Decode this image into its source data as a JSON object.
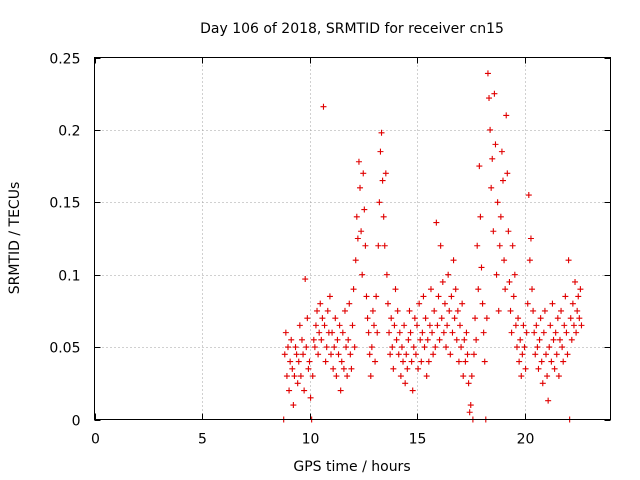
{
  "chart_data": {
    "type": "scatter",
    "title": "Day 106 of 2018, SRMTID for receiver cn15",
    "xlabel": "GPS time / hours",
    "ylabel": "SRMTID / TECUs",
    "xlim": [
      0,
      24
    ],
    "ylim": [
      0,
      0.25
    ],
    "xticks": [
      0,
      5,
      10,
      15,
      20
    ],
    "xtick_labels": [
      "0",
      "5",
      "10",
      "15",
      "20"
    ],
    "yticks": [
      0,
      0.05,
      0.1,
      0.15,
      0.2,
      0.25
    ],
    "ytick_labels": [
      "0",
      "0.05",
      "0.1",
      "0.15",
      "0.2",
      "0.25"
    ],
    "grid": true,
    "marker": "+",
    "color": "#e00000",
    "series": [
      {
        "name": "SRMTID",
        "points": [
          [
            8.8,
            0.0
          ],
          [
            8.85,
            0.045
          ],
          [
            8.9,
            0.06
          ],
          [
            8.95,
            0.03
          ],
          [
            9.0,
            0.05
          ],
          [
            9.05,
            0.02
          ],
          [
            9.1,
            0.04
          ],
          [
            9.15,
            0.055
          ],
          [
            9.2,
            0.035
          ],
          [
            9.25,
            0.01
          ],
          [
            9.3,
            0.03
          ],
          [
            9.35,
            0.05
          ],
          [
            9.4,
            0.045
          ],
          [
            9.45,
            0.025
          ],
          [
            9.5,
            0.04
          ],
          [
            9.55,
            0.065
          ],
          [
            9.6,
            0.03
          ],
          [
            9.65,
            0.055
          ],
          [
            9.7,
            0.045
          ],
          [
            9.75,
            0.02
          ],
          [
            9.8,
            0.097
          ],
          [
            9.85,
            0.05
          ],
          [
            9.9,
            0.07
          ],
          [
            9.95,
            0.035
          ],
          [
            10.0,
            0.04
          ],
          [
            10.05,
            0.015
          ],
          [
            10.1,
            0.0
          ],
          [
            10.15,
            0.03
          ],
          [
            10.2,
            0.055
          ],
          [
            10.25,
            0.05
          ],
          [
            10.3,
            0.065
          ],
          [
            10.35,
            0.075
          ],
          [
            10.4,
            0.045
          ],
          [
            10.45,
            0.06
          ],
          [
            10.5,
            0.08
          ],
          [
            10.55,
            0.055
          ],
          [
            10.6,
            0.07
          ],
          [
            10.65,
            0.216
          ],
          [
            10.7,
            0.065
          ],
          [
            10.75,
            0.04
          ],
          [
            10.8,
            0.05
          ],
          [
            10.85,
            0.075
          ],
          [
            10.9,
            0.06
          ],
          [
            10.95,
            0.085
          ],
          [
            11.0,
            0.045
          ],
          [
            11.05,
            0.06
          ],
          [
            11.1,
            0.035
          ],
          [
            11.15,
            0.05
          ],
          [
            11.2,
            0.07
          ],
          [
            11.25,
            0.03
          ],
          [
            11.3,
            0.055
          ],
          [
            11.35,
            0.045
          ],
          [
            11.4,
            0.065
          ],
          [
            11.45,
            0.02
          ],
          [
            11.5,
            0.04
          ],
          [
            11.55,
            0.06
          ],
          [
            11.6,
            0.035
          ],
          [
            11.65,
            0.075
          ],
          [
            11.7,
            0.05
          ],
          [
            11.75,
            0.03
          ],
          [
            11.8,
            0.055
          ],
          [
            11.85,
            0.08
          ],
          [
            11.9,
            0.045
          ],
          [
            11.95,
            0.035
          ],
          [
            12.0,
            0.065
          ],
          [
            12.05,
            0.09
          ],
          [
            12.1,
            0.05
          ],
          [
            12.15,
            0.11
          ],
          [
            12.2,
            0.14
          ],
          [
            12.25,
            0.125
          ],
          [
            12.3,
            0.178
          ],
          [
            12.35,
            0.16
          ],
          [
            12.4,
            0.13
          ],
          [
            12.45,
            0.1
          ],
          [
            12.5,
            0.17
          ],
          [
            12.55,
            0.145
          ],
          [
            12.6,
            0.12
          ],
          [
            12.65,
            0.085
          ],
          [
            12.7,
            0.07
          ],
          [
            12.75,
            0.06
          ],
          [
            12.8,
            0.045
          ],
          [
            12.85,
            0.03
          ],
          [
            12.9,
            0.05
          ],
          [
            12.95,
            0.075
          ],
          [
            13.0,
            0.065
          ],
          [
            13.05,
            0.04
          ],
          [
            13.1,
            0.085
          ],
          [
            13.15,
            0.06
          ],
          [
            13.2,
            0.12
          ],
          [
            13.25,
            0.15
          ],
          [
            13.3,
            0.185
          ],
          [
            13.35,
            0.198
          ],
          [
            13.4,
            0.165
          ],
          [
            13.45,
            0.14
          ],
          [
            13.5,
            0.12
          ],
          [
            13.55,
            0.17
          ],
          [
            13.6,
            0.1
          ],
          [
            13.65,
            0.08
          ],
          [
            13.7,
            0.06
          ],
          [
            13.75,
            0.045
          ],
          [
            13.8,
            0.07
          ],
          [
            13.85,
            0.05
          ],
          [
            13.9,
            0.035
          ],
          [
            13.95,
            0.065
          ],
          [
            14.0,
            0.09
          ],
          [
            14.05,
            0.055
          ],
          [
            14.1,
            0.075
          ],
          [
            14.15,
            0.045
          ],
          [
            14.2,
            0.06
          ],
          [
            14.25,
            0.03
          ],
          [
            14.3,
            0.05
          ],
          [
            14.35,
            0.04
          ],
          [
            14.4,
            0.065
          ],
          [
            14.45,
            0.025
          ],
          [
            14.5,
            0.045
          ],
          [
            14.55,
            0.035
          ],
          [
            14.6,
            0.055
          ],
          [
            14.65,
            0.075
          ],
          [
            14.7,
            0.06
          ],
          [
            14.75,
            0.04
          ],
          [
            14.8,
            0.02
          ],
          [
            14.85,
            0.05
          ],
          [
            14.9,
            0.07
          ],
          [
            14.95,
            0.045
          ],
          [
            15.0,
            0.065
          ],
          [
            15.05,
            0.035
          ],
          [
            15.1,
            0.08
          ],
          [
            15.15,
            0.055
          ],
          [
            15.2,
            0.04
          ],
          [
            15.25,
            0.06
          ],
          [
            15.3,
            0.085
          ],
          [
            15.35,
            0.05
          ],
          [
            15.4,
            0.07
          ],
          [
            15.45,
            0.03
          ],
          [
            15.5,
            0.055
          ],
          [
            15.55,
            0.04
          ],
          [
            15.6,
            0.065
          ],
          [
            15.65,
            0.09
          ],
          [
            15.7,
            0.06
          ],
          [
            15.75,
            0.045
          ],
          [
            15.8,
            0.075
          ],
          [
            15.85,
            0.05
          ],
          [
            15.9,
            0.136
          ],
          [
            15.95,
            0.065
          ],
          [
            16.0,
            0.085
          ],
          [
            16.05,
            0.055
          ],
          [
            16.1,
            0.12
          ],
          [
            16.15,
            0.07
          ],
          [
            16.2,
            0.095
          ],
          [
            16.25,
            0.06
          ],
          [
            16.3,
            0.08
          ],
          [
            16.35,
            0.05
          ],
          [
            16.4,
            0.065
          ],
          [
            16.45,
            0.1
          ],
          [
            16.5,
            0.075
          ],
          [
            16.55,
            0.045
          ],
          [
            16.6,
            0.085
          ],
          [
            16.65,
            0.06
          ],
          [
            16.7,
            0.11
          ],
          [
            16.75,
            0.07
          ],
          [
            16.8,
            0.09
          ],
          [
            16.85,
            0.055
          ],
          [
            16.9,
            0.075
          ],
          [
            16.95,
            0.04
          ],
          [
            17.0,
            0.065
          ],
          [
            17.05,
            0.05
          ],
          [
            17.1,
            0.08
          ],
          [
            17.15,
            0.03
          ],
          [
            17.2,
            0.055
          ],
          [
            17.25,
            0.04
          ],
          [
            17.3,
            0.06
          ],
          [
            17.35,
            0.045
          ],
          [
            17.4,
            0.025
          ],
          [
            17.45,
            0.005
          ],
          [
            17.5,
            0.01
          ],
          [
            17.55,
            0.03
          ],
          [
            17.6,
            0.0
          ],
          [
            17.65,
            0.045
          ],
          [
            17.7,
            0.07
          ],
          [
            17.75,
            0.055
          ],
          [
            17.8,
            0.12
          ],
          [
            17.85,
            0.09
          ],
          [
            17.9,
            0.175
          ],
          [
            17.95,
            0.14
          ],
          [
            18.0,
            0.105
          ],
          [
            18.05,
            0.08
          ],
          [
            18.1,
            0.06
          ],
          [
            18.15,
            0.04
          ],
          [
            18.2,
            0.0
          ],
          [
            18.25,
            0.07
          ],
          [
            18.3,
            0.239
          ],
          [
            18.35,
            0.222
          ],
          [
            18.4,
            0.2
          ],
          [
            18.45,
            0.16
          ],
          [
            18.5,
            0.18
          ],
          [
            18.55,
            0.13
          ],
          [
            18.6,
            0.225
          ],
          [
            18.65,
            0.19
          ],
          [
            18.7,
            0.1
          ],
          [
            18.75,
            0.15
          ],
          [
            18.8,
            0.075
          ],
          [
            18.85,
            0.12
          ],
          [
            18.9,
            0.14
          ],
          [
            18.95,
            0.185
          ],
          [
            19.0,
            0.165
          ],
          [
            19.05,
            0.11
          ],
          [
            19.1,
            0.09
          ],
          [
            19.15,
            0.21
          ],
          [
            19.2,
            0.17
          ],
          [
            19.25,
            0.13
          ],
          [
            19.3,
            0.095
          ],
          [
            19.35,
            0.075
          ],
          [
            19.4,
            0.06
          ],
          [
            19.45,
            0.12
          ],
          [
            19.5,
            0.085
          ],
          [
            19.55,
            0.1
          ],
          [
            19.6,
            0.065
          ],
          [
            19.65,
            0.05
          ],
          [
            19.7,
            0.07
          ],
          [
            19.75,
            0.04
          ],
          [
            19.8,
            0.055
          ],
          [
            19.85,
            0.03
          ],
          [
            19.9,
            0.045
          ],
          [
            19.95,
            0.065
          ],
          [
            20.0,
            0.05
          ],
          [
            20.05,
            0.035
          ],
          [
            20.1,
            0.06
          ],
          [
            20.15,
            0.08
          ],
          [
            20.2,
            0.155
          ],
          [
            20.25,
            0.11
          ],
          [
            20.3,
            0.125
          ],
          [
            20.35,
            0.09
          ],
          [
            20.4,
            0.075
          ],
          [
            20.45,
            0.06
          ],
          [
            20.5,
            0.045
          ],
          [
            20.55,
            0.065
          ],
          [
            20.6,
            0.05
          ],
          [
            20.65,
            0.035
          ],
          [
            20.7,
            0.055
          ],
          [
            20.75,
            0.07
          ],
          [
            20.8,
            0.04
          ],
          [
            20.85,
            0.025
          ],
          [
            20.9,
            0.06
          ],
          [
            20.95,
            0.075
          ],
          [
            21.0,
            0.045
          ],
          [
            21.05,
            0.03
          ],
          [
            21.1,
            0.013
          ],
          [
            21.15,
            0.05
          ],
          [
            21.2,
            0.065
          ],
          [
            21.25,
            0.04
          ],
          [
            21.3,
            0.08
          ],
          [
            21.35,
            0.055
          ],
          [
            21.4,
            0.035
          ],
          [
            21.45,
            0.06
          ],
          [
            21.5,
            0.045
          ],
          [
            21.55,
            0.07
          ],
          [
            21.6,
            0.03
          ],
          [
            21.65,
            0.055
          ],
          [
            21.7,
            0.075
          ],
          [
            21.75,
            0.05
          ],
          [
            21.8,
            0.04
          ],
          [
            21.85,
            0.065
          ],
          [
            21.9,
            0.085
          ],
          [
            21.95,
            0.06
          ],
          [
            22.0,
            0.045
          ],
          [
            22.05,
            0.11
          ],
          [
            22.1,
            0.0
          ],
          [
            22.15,
            0.07
          ],
          [
            22.2,
            0.055
          ],
          [
            22.25,
            0.08
          ],
          [
            22.3,
            0.065
          ],
          [
            22.35,
            0.095
          ],
          [
            22.4,
            0.06
          ],
          [
            22.45,
            0.075
          ],
          [
            22.5,
            0.085
          ],
          [
            22.55,
            0.07
          ],
          [
            22.6,
            0.09
          ],
          [
            22.65,
            0.065
          ]
        ]
      }
    ]
  }
}
